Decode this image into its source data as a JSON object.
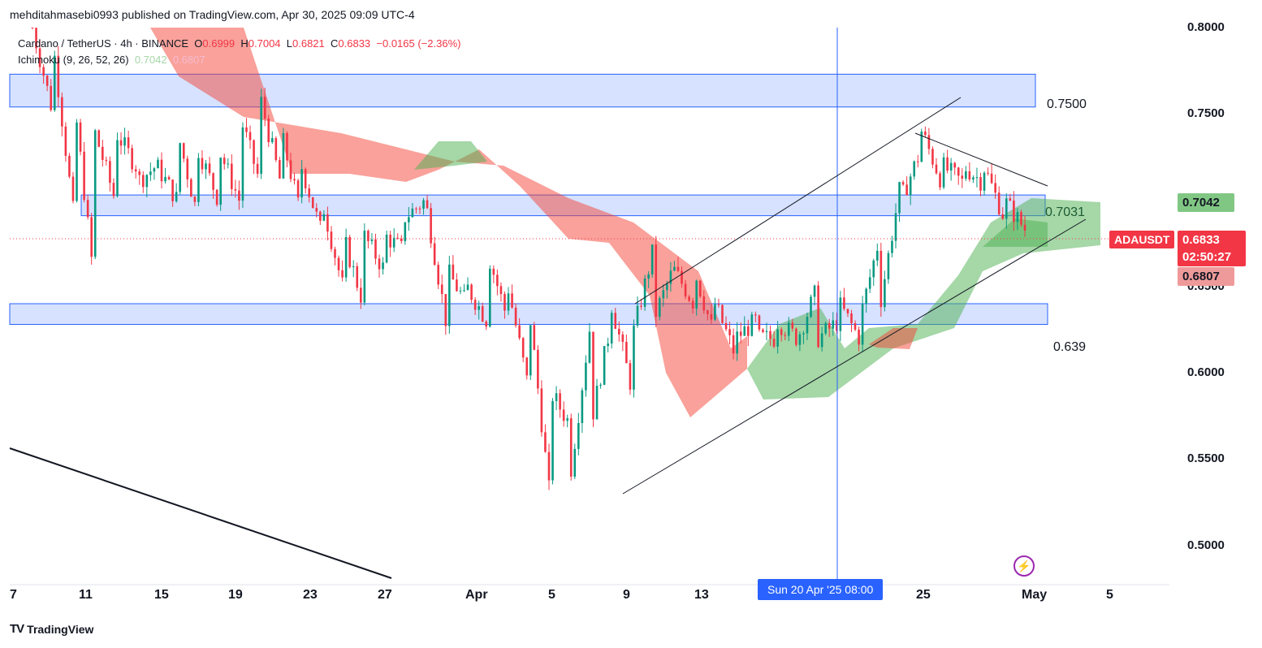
{
  "header": {
    "publisher_line": "mehditahmasebi0993 published on TradingView.com, Apr 30, 2025 09:09 UTC-4"
  },
  "legend": {
    "symbol": "Cardano / TetherUS · 4h · BINANCE",
    "open_label": "O",
    "open": "0.6999",
    "high_label": "H",
    "high": "0.7004",
    "low_label": "L",
    "low": "0.6821",
    "close_label": "C",
    "close": "0.6833",
    "change": "−0.0165 (−2.36%)",
    "indicator": "Ichimoku (9, 26, 52, 26)",
    "indicator_v1": "0.7042",
    "indicator_v2": "0.6807"
  },
  "footer": {
    "brand": "TradingView"
  },
  "colors": {
    "up": "#089981",
    "down": "#f23645",
    "cloud_bull": "#4caf50",
    "cloud_bear": "#f44336",
    "zone": "#bbceff",
    "crosshair": "#2962ff"
  },
  "chart_data": {
    "type": "candlestick",
    "symbol": "ADAUSDT",
    "ylim": [
      0.48,
      0.8
    ],
    "y_ticks": [
      "0.8000",
      "0.7500",
      "0.6500",
      "0.6000",
      "0.5500",
      "0.5000"
    ],
    "x_ticks": [
      "7",
      "11",
      "15",
      "19",
      "23",
      "27",
      "Apr",
      "5",
      "9",
      "13",
      "25",
      "May",
      "5"
    ],
    "crosshair_x_label": "Sun 20 Apr '25   08:00",
    "last_price": {
      "symbol": "ADAUSDT",
      "price": "0.6833",
      "countdown": "02:50:27"
    },
    "ichimoku_labels": {
      "span_a": "0.7042",
      "span_b": "0.6807"
    },
    "zones": [
      {
        "label": "0.7500",
        "low": 0.754,
        "high": 0.773
      },
      {
        "label": "0.7031",
        "low": 0.691,
        "high": 0.703
      },
      {
        "label": "0.639",
        "low": 0.628,
        "high": 0.64
      }
    ],
    "price_path": [
      [
        0.8,
        0.77
      ],
      [
        0.79,
        0.75
      ],
      [
        0.76,
        0.69
      ],
      [
        0.74,
        0.65
      ],
      [
        0.74,
        0.7
      ],
      [
        0.71,
        0.72
      ],
      [
        0.72,
        0.72
      ],
      [
        0.74,
        0.7
      ],
      [
        0.73,
        0.69
      ],
      [
        0.73,
        0.7
      ],
      [
        0.75,
        0.7
      ],
      [
        0.76,
        0.71
      ],
      [
        0.74,
        0.71
      ],
      [
        0.72,
        0.69
      ],
      [
        0.7,
        0.68
      ],
      [
        0.68,
        0.65
      ],
      [
        0.68,
        0.64
      ],
      [
        0.68,
        0.66
      ],
      [
        0.69,
        0.67
      ],
      [
        0.7,
        0.7
      ],
      [
        0.66,
        0.63
      ],
      [
        0.65,
        0.64
      ],
      [
        0.67,
        0.63
      ],
      [
        0.65,
        0.63
      ],
      [
        0.64,
        0.59
      ],
      [
        0.59,
        0.53
      ],
      [
        0.54,
        0.57
      ],
      [
        0.57,
        0.63
      ],
      [
        0.64,
        0.63
      ],
      [
        0.62,
        0.59
      ],
      [
        0.63,
        0.67
      ],
      [
        0.66,
        0.66
      ],
      [
        0.66,
        0.64
      ],
      [
        0.64,
        0.62
      ],
      [
        0.62,
        0.61
      ],
      [
        0.62,
        0.63
      ],
      [
        0.63,
        0.62
      ],
      [
        0.62,
        0.62
      ],
      [
        0.62,
        0.65
      ],
      [
        0.64,
        0.63
      ],
      [
        0.63,
        0.62
      ],
      [
        0.64,
        0.68
      ],
      [
        0.7,
        0.71
      ],
      [
        0.74,
        0.73
      ],
      [
        0.72,
        0.71
      ],
      [
        0.72,
        0.71
      ],
      [
        0.72,
        0.71
      ],
      [
        0.7,
        0.69
      ],
      [
        0.69,
        0.6833
      ]
    ]
  }
}
